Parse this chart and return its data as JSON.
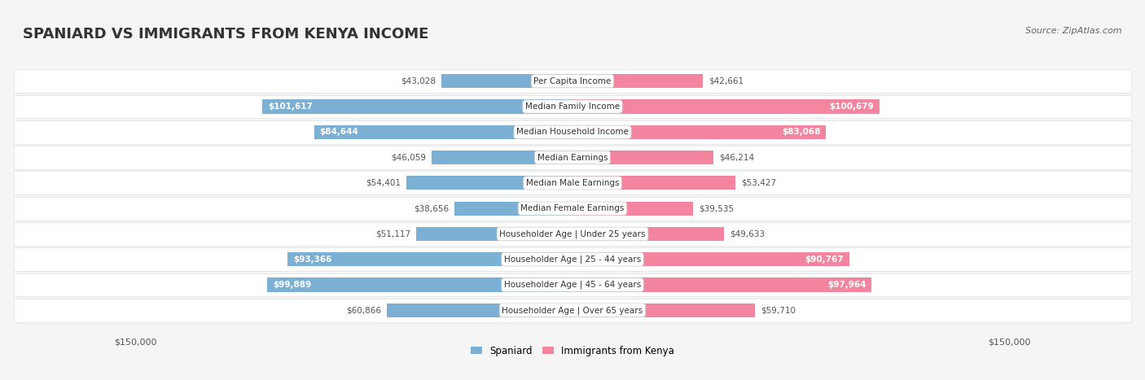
{
  "title": "SPANIARD VS IMMIGRANTS FROM KENYA INCOME",
  "source": "Source: ZipAtlas.com",
  "categories": [
    "Per Capita Income",
    "Median Family Income",
    "Median Household Income",
    "Median Earnings",
    "Median Male Earnings",
    "Median Female Earnings",
    "Householder Age | Under 25 years",
    "Householder Age | 25 - 44 years",
    "Householder Age | 45 - 64 years",
    "Householder Age | Over 65 years"
  ],
  "spaniard_values": [
    43028,
    101617,
    84644,
    46059,
    54401,
    38656,
    51117,
    93366,
    99889,
    60866
  ],
  "kenya_values": [
    42661,
    100679,
    83068,
    46214,
    53427,
    39535,
    49633,
    90767,
    97964,
    59710
  ],
  "spaniard_labels": [
    "$43,028",
    "$101,617",
    "$84,644",
    "$46,059",
    "$54,401",
    "$38,656",
    "$51,117",
    "$93,366",
    "$99,889",
    "$60,866"
  ],
  "kenya_labels": [
    "$42,661",
    "$100,679",
    "$83,068",
    "$46,214",
    "$53,427",
    "$39,535",
    "$49,633",
    "$90,767",
    "$97,964",
    "$59,710"
  ],
  "spaniard_color": "#7bafd4",
  "kenya_color": "#f485a0",
  "max_value": 150000,
  "legend_spaniard": "Spaniard",
  "legend_kenya": "Immigrants from Kenya",
  "background_color": "#f5f5f5",
  "row_bg_color": "#ffffff",
  "label_dark_threshold": 70000
}
